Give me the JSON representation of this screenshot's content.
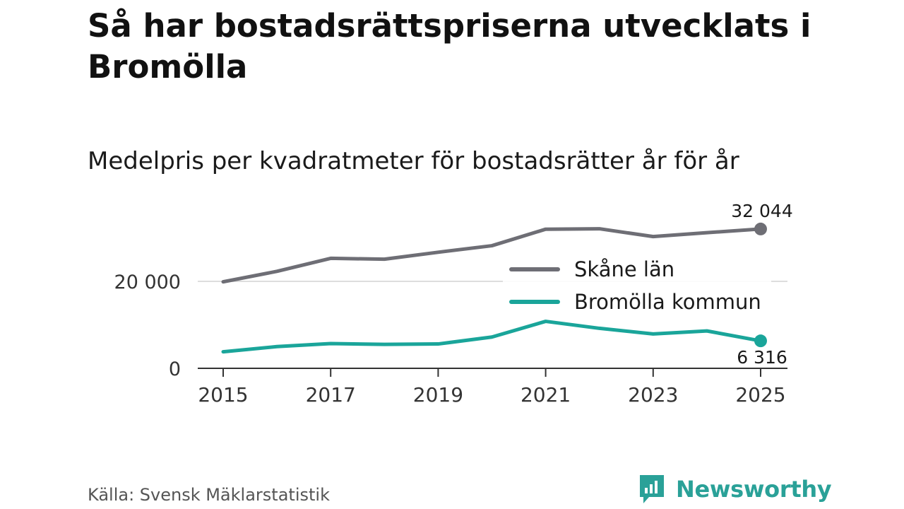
{
  "title": "Så har bostadsrättspriserna utvecklats i Bromölla",
  "subtitle": "Medelpris per kvadratmeter för bostadsrätter år för år",
  "source": "Källa: Svensk Mäklarstatistik",
  "brand": {
    "name": "Newsworthy",
    "logo_icon": "bar-chart-speech-bubble-icon"
  },
  "colors": {
    "skane": "#6e6e75",
    "bromolla": "#1aa59a",
    "grid": "#dddddd",
    "axis": "#333333"
  },
  "chart_data": {
    "type": "line",
    "title": "Medelpris per kvadratmeter för bostadsrätter år för år",
    "x": [
      2015,
      2016,
      2017,
      2018,
      2019,
      2020,
      2021,
      2022,
      2023,
      2024,
      2025
    ],
    "x_ticks": [
      "2015",
      "2017",
      "2019",
      "2021",
      "2023",
      "2025"
    ],
    "y_ticks": [
      {
        "value": 0,
        "label": "0"
      },
      {
        "value": 20000,
        "label": "20 000"
      }
    ],
    "ylim": [
      0,
      35000
    ],
    "grid": true,
    "legend_position": "right",
    "series": [
      {
        "name": "Skåne län",
        "color_key": "skane",
        "values": [
          19900,
          22300,
          25300,
          25100,
          26700,
          28200,
          32000,
          32100,
          30300,
          31200,
          32044
        ],
        "end_label": "32 044",
        "end_label_side": "above"
      },
      {
        "name": "Bromölla kommun",
        "color_key": "bromolla",
        "values": [
          3800,
          5000,
          5700,
          5500,
          5600,
          7200,
          10800,
          9200,
          7900,
          8600,
          6316
        ],
        "end_label": "6 316",
        "end_label_side": "below"
      }
    ]
  }
}
